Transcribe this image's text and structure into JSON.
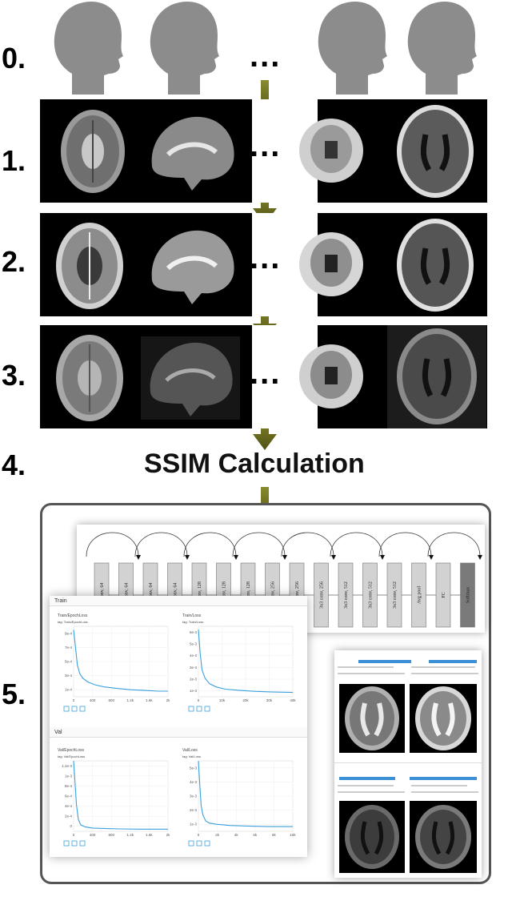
{
  "steps": {
    "s0": "0.",
    "s1": "1.",
    "s2": "2.",
    "s3": "3.",
    "s4": "4.",
    "s5": "5."
  },
  "ellipsis": "...",
  "ssim_label": "SSIM Calculation",
  "architecture": {
    "layers": [
      "3x3 conv, 64",
      "3x3 conv, 64",
      "3x3 conv, 64",
      "3x3 conv, 64",
      "3x3 conv, 128",
      "3x3 conv, 128",
      "3x3 conv, 128",
      "3x3 conv, 256",
      "3x3 conv, 256",
      "3x3 conv, 256",
      "3x3 conv, 512",
      "3x3 conv, 512",
      "3x3 conv, 512",
      "Avg pool",
      "FC",
      "Softmax"
    ]
  },
  "tensorboard": {
    "train_section": "Train",
    "val_section": "Val",
    "charts": [
      {
        "title": "Train/EpochLoss",
        "tag": "tag: Train/EpochLoss",
        "yticks": [
          "1e-4",
          "3e-4",
          "5e-4",
          "7e-4",
          "9e-4"
        ],
        "xticks": [
          "0",
          "400",
          "800",
          "1.2k",
          "1.6k",
          "2k"
        ],
        "xmax": 2000,
        "ymin": 0,
        "ymax": 0.001,
        "values": [
          [
            0,
            0.00095
          ],
          [
            40,
            0.0007
          ],
          [
            80,
            0.00045
          ],
          [
            130,
            0.00033
          ],
          [
            200,
            0.00026
          ],
          [
            300,
            0.00021
          ],
          [
            450,
            0.00017
          ],
          [
            650,
            0.00014
          ],
          [
            900,
            0.00012
          ],
          [
            1200,
            0.0001
          ],
          [
            1500,
            9e-05
          ],
          [
            1800,
            8e-05
          ],
          [
            2000,
            8e-05
          ]
        ]
      },
      {
        "title": "Train/Loss",
        "tag": "tag: Train/Loss",
        "yticks": [
          "1e-3",
          "2e-3",
          "3e-3",
          "4e-3",
          "5e-3",
          "6e-3"
        ],
        "xticks": [
          "0",
          "10k",
          "20k",
          "30k",
          "40k"
        ],
        "xmax": 42000,
        "ymin": 0,
        "ymax": 0.0065,
        "values": [
          [
            0,
            0.0062
          ],
          [
            800,
            0.004
          ],
          [
            1600,
            0.0025
          ],
          [
            3000,
            0.0017
          ],
          [
            5000,
            0.0012
          ],
          [
            8000,
            0.0009
          ],
          [
            12000,
            0.0007
          ],
          [
            18000,
            0.0006
          ],
          [
            25000,
            0.0005
          ],
          [
            32000,
            0.00045
          ],
          [
            42000,
            0.0004
          ]
        ]
      },
      {
        "title": "Val/EpochLoss",
        "tag": "tag: Val/EpochLoss",
        "yticks": [
          "0",
          "2e-4",
          "4e-4",
          "6e-4",
          "8e-4",
          "1e-3",
          "1.2e-3"
        ],
        "xticks": [
          "0",
          "400",
          "800",
          "1.2k",
          "1.6k",
          "2k"
        ],
        "xmax": 2000,
        "ymin": 0,
        "ymax": 0.0013,
        "values": [
          [
            0,
            0.0013
          ],
          [
            30,
            0.0009
          ],
          [
            60,
            0.0005
          ],
          [
            100,
            0.00022
          ],
          [
            150,
            0.00012
          ],
          [
            250,
            8e-05
          ],
          [
            400,
            6e-05
          ],
          [
            700,
            5e-05
          ],
          [
            1000,
            4.5e-05
          ],
          [
            1400,
            4e-05
          ],
          [
            2000,
            4e-05
          ]
        ]
      },
      {
        "title": "Val/Loss",
        "tag": "tag: Val/Loss",
        "yticks": [
          "1e-3",
          "2e-3",
          "3e-3",
          "4e-3",
          "5e-3"
        ],
        "xticks": [
          "0",
          "2k",
          "4k",
          "6k",
          "8k",
          "10k"
        ],
        "xmax": 10500,
        "ymin": 0,
        "ymax": 0.006,
        "values": [
          [
            0,
            0.006
          ],
          [
            150,
            0.004
          ],
          [
            300,
            0.0022
          ],
          [
            500,
            0.0014
          ],
          [
            800,
            0.0009
          ],
          [
            1200,
            0.0007
          ],
          [
            2000,
            0.0006
          ],
          [
            3500,
            0.0005
          ],
          [
            5500,
            0.00045
          ],
          [
            8000,
            0.0004
          ],
          [
            10500,
            0.0004
          ]
        ]
      }
    ]
  },
  "colors": {
    "arrow": "#6b6d1e",
    "line": "#3aa0dc",
    "bar": "#3a8fd6"
  }
}
